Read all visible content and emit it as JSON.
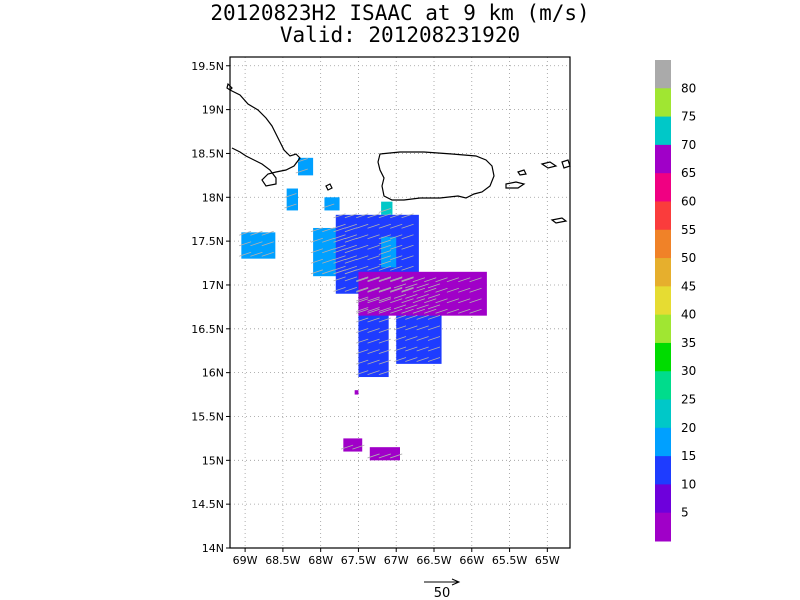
{
  "title": {
    "line1": "20120823H2 ISAAC at 9 km (m/s)",
    "line2": "Valid: 201208231920"
  },
  "chart_data": {
    "type": "heatmap",
    "title": "20120823H2 ISAAC at 9 km (m/s)",
    "subtitle": "Valid: 201208231920",
    "xlabel": "",
    "ylabel": "",
    "xlim": [
      -69.2,
      -64.7
    ],
    "ylim": [
      14.0,
      19.6
    ],
    "x_ticks": [
      -69,
      -68.5,
      -68,
      -67.5,
      -67,
      -66.5,
      -66,
      -65.5,
      -65
    ],
    "x_tick_labels": [
      "69W",
      "68.5W",
      "68W",
      "67.5W",
      "67W",
      "66.5W",
      "66W",
      "65.5W",
      "65W"
    ],
    "y_ticks": [
      14,
      14.5,
      15,
      15.5,
      16,
      16.5,
      17,
      17.5,
      18,
      18.5,
      19,
      19.5
    ],
    "y_tick_labels": [
      "14N",
      "14.5N",
      "15N",
      "15.5N",
      "16N",
      "16.5N",
      "17N",
      "17.5N",
      "18N",
      "18.5N",
      "19N",
      "19.5N"
    ],
    "grid": true,
    "colorbar": {
      "labels": [
        "5",
        "10",
        "15",
        "20",
        "25",
        "30",
        "35",
        "40",
        "45",
        "50",
        "55",
        "60",
        "65",
        "70",
        "75",
        "80"
      ],
      "colors": [
        "#a000c8",
        "#6e00dc",
        "#1e3cff",
        "#00a0ff",
        "#00c8c8",
        "#00dc8c",
        "#00dc00",
        "#a0e632",
        "#e6dc32",
        "#e6af2d",
        "#f08228",
        "#fa3c3c",
        "#f00082",
        "#a000c8",
        "#00c8c8",
        "#a0e632",
        "#aaaaaa"
      ]
    },
    "reference_vector": {
      "label": "50",
      "units": "m/s"
    },
    "regions": [
      {
        "speed_class": 20,
        "lon": [
          -69.05,
          -68.6
        ],
        "lat": [
          17.3,
          17.6
        ]
      },
      {
        "speed_class": 20,
        "lon": [
          -68.45,
          -68.3
        ],
        "lat": [
          17.85,
          18.1
        ]
      },
      {
        "speed_class": 20,
        "lon": [
          -68.3,
          -68.1
        ],
        "lat": [
          18.25,
          18.45
        ]
      },
      {
        "speed_class": 20,
        "lon": [
          -67.95,
          -67.75
        ],
        "lat": [
          17.85,
          18.0
        ]
      },
      {
        "speed_class": 25,
        "lon": [
          -67.2,
          -67.05
        ],
        "lat": [
          17.8,
          17.95
        ]
      },
      {
        "speed_class": 20,
        "lon": [
          -68.1,
          -67.5
        ],
        "lat": [
          17.1,
          17.65
        ]
      },
      {
        "speed_class": 15,
        "lon": [
          -67.8,
          -66.7
        ],
        "lat": [
          16.9,
          17.8
        ]
      },
      {
        "speed_class": 15,
        "lon": [
          -67.5,
          -67.1
        ],
        "lat": [
          15.95,
          16.95
        ]
      },
      {
        "speed_class": 15,
        "lon": [
          -67.0,
          -66.4
        ],
        "lat": [
          16.1,
          17.0
        ]
      },
      {
        "speed_class": 20,
        "lon": [
          -67.2,
          -67.0
        ],
        "lat": [
          17.2,
          17.55
        ]
      },
      {
        "speed_class": 5,
        "lon": [
          -67.5,
          -65.8
        ],
        "lat": [
          16.65,
          17.15
        ]
      },
      {
        "speed_class": 5,
        "lon": [
          -67.7,
          -67.45
        ],
        "lat": [
          15.1,
          15.25
        ]
      },
      {
        "speed_class": 5,
        "lon": [
          -67.35,
          -66.95
        ],
        "lat": [
          15.0,
          15.15
        ]
      },
      {
        "speed_class": 5,
        "lon": [
          -67.55,
          -67.5
        ],
        "lat": [
          15.75,
          15.8
        ]
      }
    ]
  }
}
